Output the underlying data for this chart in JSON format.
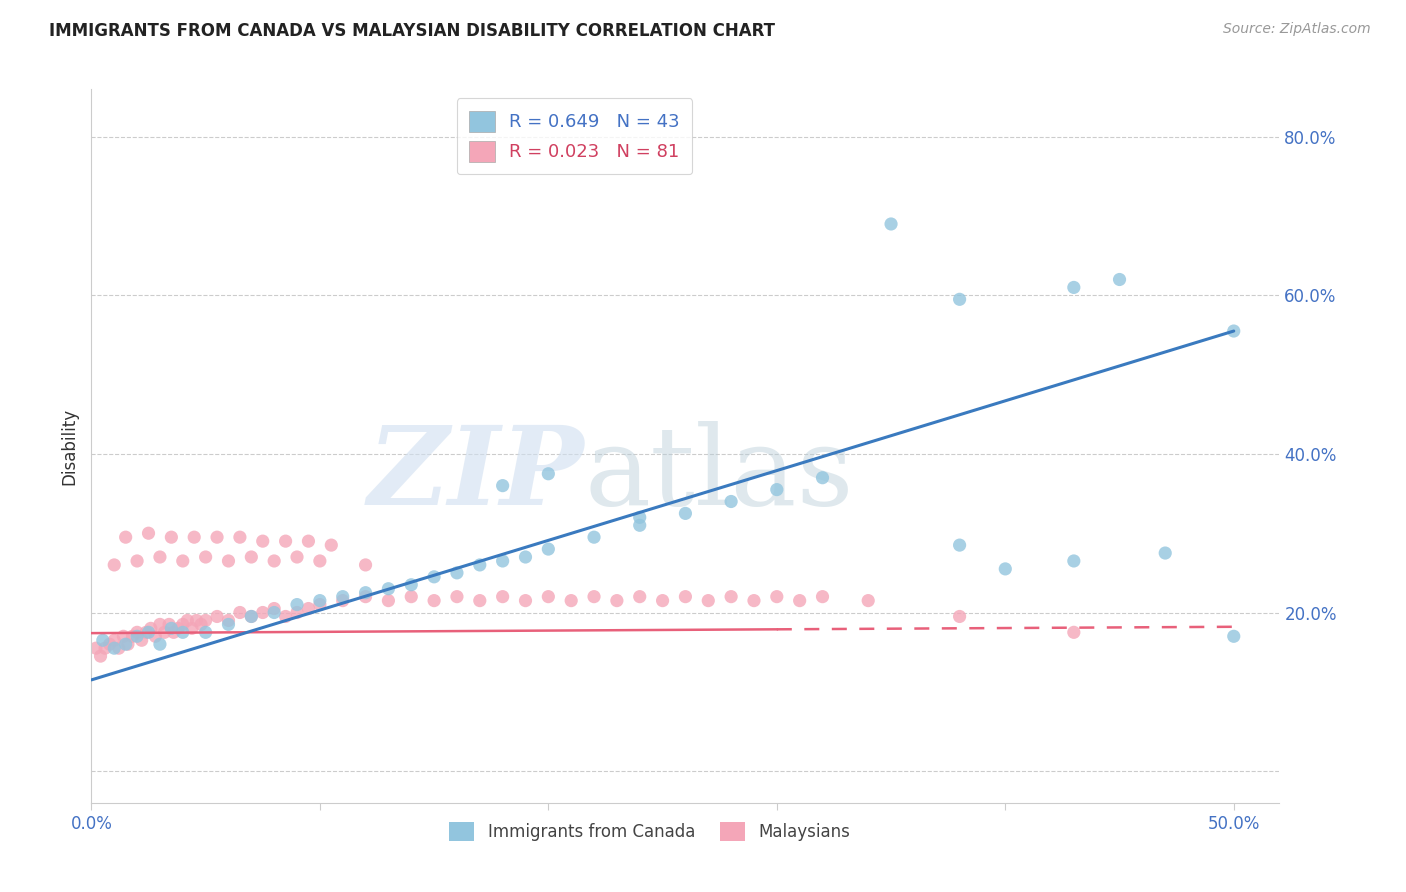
{
  "title": "IMMIGRANTS FROM CANADA VS MALAYSIAN DISABILITY CORRELATION CHART",
  "source": "Source: ZipAtlas.com",
  "ylabel": "Disability",
  "blue_R": 0.649,
  "blue_N": 43,
  "pink_R": 0.023,
  "pink_N": 81,
  "blue_color": "#92c5de",
  "pink_color": "#f4a6b8",
  "blue_line_color": "#3a7abf",
  "pink_line_color": "#e8607a",
  "xlim": [
    0.0,
    0.52
  ],
  "ylim": [
    -0.04,
    0.86
  ],
  "blue_line_x0": 0.0,
  "blue_line_y0": 0.115,
  "blue_line_x1": 0.5,
  "blue_line_y1": 0.555,
  "pink_line_x0": 0.0,
  "pink_line_y0": 0.174,
  "pink_line_x1": 0.5,
  "pink_line_y1": 0.182,
  "blue_x": [
    0.005,
    0.01,
    0.015,
    0.02,
    0.025,
    0.03,
    0.035,
    0.04,
    0.05,
    0.06,
    0.07,
    0.08,
    0.09,
    0.1,
    0.11,
    0.12,
    0.13,
    0.14,
    0.15,
    0.16,
    0.17,
    0.18,
    0.19,
    0.2,
    0.22,
    0.24,
    0.26,
    0.28,
    0.3,
    0.32,
    0.38,
    0.4,
    0.43,
    0.47,
    0.5,
    0.18,
    0.2,
    0.24,
    0.35,
    0.43,
    0.38,
    0.45,
    0.5
  ],
  "blue_y": [
    0.165,
    0.155,
    0.16,
    0.17,
    0.175,
    0.16,
    0.18,
    0.175,
    0.175,
    0.185,
    0.195,
    0.2,
    0.21,
    0.215,
    0.22,
    0.225,
    0.23,
    0.235,
    0.245,
    0.25,
    0.26,
    0.265,
    0.27,
    0.28,
    0.295,
    0.31,
    0.325,
    0.34,
    0.355,
    0.37,
    0.285,
    0.255,
    0.265,
    0.275,
    0.17,
    0.36,
    0.375,
    0.32,
    0.69,
    0.61,
    0.595,
    0.62,
    0.555
  ],
  "pink_x": [
    0.002,
    0.004,
    0.006,
    0.008,
    0.01,
    0.012,
    0.014,
    0.016,
    0.018,
    0.02,
    0.022,
    0.024,
    0.026,
    0.028,
    0.03,
    0.032,
    0.034,
    0.036,
    0.038,
    0.04,
    0.042,
    0.044,
    0.046,
    0.048,
    0.05,
    0.055,
    0.06,
    0.065,
    0.07,
    0.075,
    0.08,
    0.085,
    0.09,
    0.095,
    0.1,
    0.11,
    0.12,
    0.13,
    0.14,
    0.15,
    0.16,
    0.17,
    0.18,
    0.19,
    0.2,
    0.21,
    0.22,
    0.23,
    0.24,
    0.25,
    0.26,
    0.27,
    0.28,
    0.29,
    0.3,
    0.31,
    0.32,
    0.34,
    0.01,
    0.02,
    0.03,
    0.04,
    0.05,
    0.06,
    0.07,
    0.08,
    0.09,
    0.1,
    0.12,
    0.015,
    0.025,
    0.035,
    0.045,
    0.055,
    0.065,
    0.075,
    0.085,
    0.095,
    0.105,
    0.43,
    0.38
  ],
  "pink_y": [
    0.155,
    0.145,
    0.155,
    0.16,
    0.165,
    0.155,
    0.17,
    0.16,
    0.17,
    0.175,
    0.165,
    0.175,
    0.18,
    0.17,
    0.185,
    0.175,
    0.185,
    0.175,
    0.18,
    0.185,
    0.19,
    0.18,
    0.19,
    0.185,
    0.19,
    0.195,
    0.19,
    0.2,
    0.195,
    0.2,
    0.205,
    0.195,
    0.2,
    0.205,
    0.21,
    0.215,
    0.22,
    0.215,
    0.22,
    0.215,
    0.22,
    0.215,
    0.22,
    0.215,
    0.22,
    0.215,
    0.22,
    0.215,
    0.22,
    0.215,
    0.22,
    0.215,
    0.22,
    0.215,
    0.22,
    0.215,
    0.22,
    0.215,
    0.26,
    0.265,
    0.27,
    0.265,
    0.27,
    0.265,
    0.27,
    0.265,
    0.27,
    0.265,
    0.26,
    0.295,
    0.3,
    0.295,
    0.295,
    0.295,
    0.295,
    0.29,
    0.29,
    0.29,
    0.285,
    0.175,
    0.195
  ],
  "grid_color": "#cccccc",
  "tick_color": "#4472c4",
  "title_fontsize": 12,
  "axis_fontsize": 12,
  "source_fontsize": 10
}
